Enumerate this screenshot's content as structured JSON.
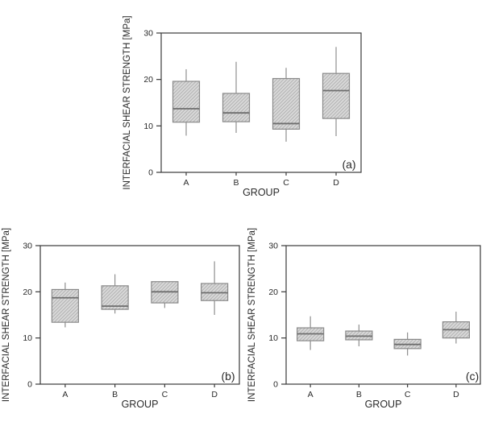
{
  "figure": {
    "background": "#ffffff",
    "colors": {
      "axis": "#3a3a3a",
      "text": "#2a2a2a",
      "box_fill": "#d9d9d9",
      "box_hatch": "#b2b2b2",
      "box_border": "#8a8a8a",
      "median": "#6e6e6e",
      "whisker": "#8f8f8f"
    }
  },
  "chart_data": [
    {
      "type": "box",
      "panel_label": "(a)",
      "title": "",
      "xlabel": "GROUP",
      "ylabel": "INTERFACIAL SHEAR STRENGTH [MPa]",
      "ylim": [
        0,
        30
      ],
      "yticks": [
        0,
        10,
        20,
        30
      ],
      "grid": false,
      "legend": "none",
      "categories": [
        "A",
        "B",
        "C",
        "D"
      ],
      "series": [
        {
          "name": "A",
          "whisker_low": 7.9,
          "q1": 10.8,
          "median": 13.7,
          "q3": 19.6,
          "whisker_high": 22.2
        },
        {
          "name": "B",
          "whisker_low": 8.5,
          "q1": 10.9,
          "median": 12.8,
          "q3": 17.0,
          "whisker_high": 23.8
        },
        {
          "name": "C",
          "whisker_low": 6.6,
          "q1": 9.3,
          "median": 10.5,
          "q3": 20.2,
          "whisker_high": 22.5
        },
        {
          "name": "D",
          "whisker_low": 7.8,
          "q1": 11.6,
          "median": 17.6,
          "q3": 21.3,
          "whisker_high": 27.0
        }
      ]
    },
    {
      "type": "box",
      "panel_label": "(b)",
      "title": "",
      "xlabel": "GROUP",
      "ylabel": "INTERFACIAL SHEAR STRENGTH [MPa]",
      "ylim": [
        0,
        30
      ],
      "yticks": [
        0,
        10,
        20,
        30
      ],
      "grid": false,
      "legend": "none",
      "categories": [
        "A",
        "B",
        "C",
        "D"
      ],
      "series": [
        {
          "name": "A",
          "whisker_low": 12.3,
          "q1": 13.4,
          "median": 18.7,
          "q3": 20.5,
          "whisker_high": 22.0
        },
        {
          "name": "B",
          "whisker_low": 15.3,
          "q1": 16.2,
          "median": 16.9,
          "q3": 21.3,
          "whisker_high": 23.8
        },
        {
          "name": "C",
          "whisker_low": 16.5,
          "q1": 17.6,
          "median": 20.0,
          "q3": 22.2,
          "whisker_high": 22.2
        },
        {
          "name": "D",
          "whisker_low": 15.0,
          "q1": 18.1,
          "median": 19.8,
          "q3": 21.8,
          "whisker_high": 26.6
        }
      ]
    },
    {
      "type": "box",
      "panel_label": "(c)",
      "title": "",
      "xlabel": "GROUP",
      "ylabel": "INTERFACIAL SHEAR STRENGTH [MPa]",
      "ylim": [
        0,
        30
      ],
      "yticks": [
        0,
        10,
        20,
        30
      ],
      "grid": false,
      "legend": "none",
      "categories": [
        "A",
        "B",
        "C",
        "D"
      ],
      "series": [
        {
          "name": "A",
          "whisker_low": 7.4,
          "q1": 9.4,
          "median": 10.9,
          "q3": 12.2,
          "whisker_high": 14.7
        },
        {
          "name": "B",
          "whisker_low": 8.2,
          "q1": 9.6,
          "median": 10.4,
          "q3": 11.5,
          "whisker_high": 12.9
        },
        {
          "name": "C",
          "whisker_low": 6.2,
          "q1": 7.7,
          "median": 8.6,
          "q3": 9.7,
          "whisker_high": 11.2
        },
        {
          "name": "D",
          "whisker_low": 8.8,
          "q1": 10.0,
          "median": 11.8,
          "q3": 13.5,
          "whisker_high": 15.7
        }
      ]
    }
  ]
}
